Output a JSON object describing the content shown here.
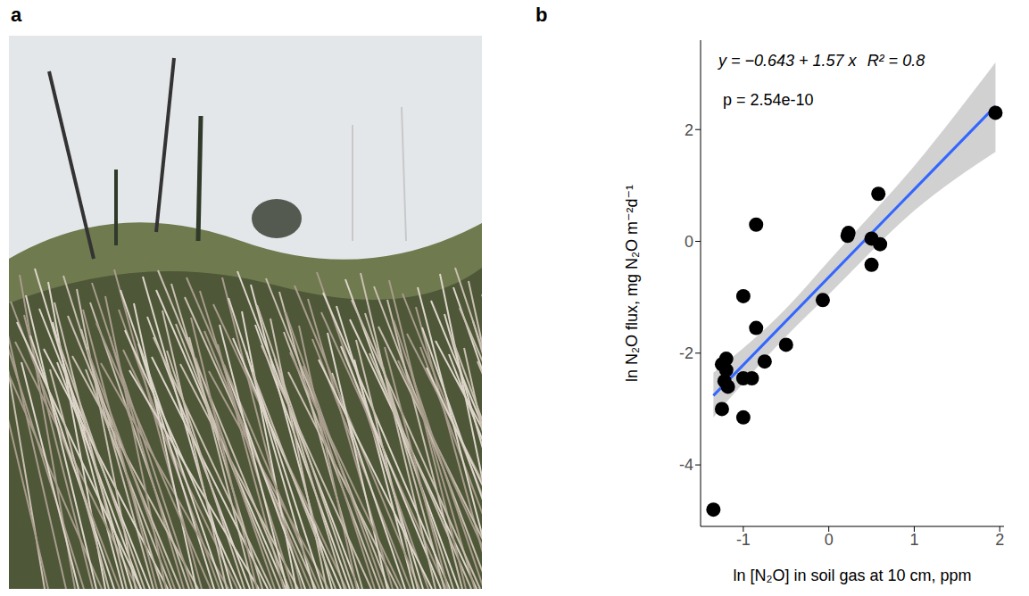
{
  "panel_a": {
    "label": "a"
  },
  "chart_data": {
    "type": "scatter",
    "panel_label": "b",
    "x_label": "ln [N₂O] in soil gas at 10 cm, ppm",
    "y_label": "ln N₂O flux, mg N₂O m⁻²d⁻¹",
    "annotations": [
      "y = −0.643 + 1.57 x",
      "R² = 0.8",
      "p = 2.54e-10"
    ],
    "xlim": [
      -1.5,
      2.05
    ],
    "ylim": [
      -5.1,
      3.6
    ],
    "xticks": [
      -1,
      0,
      1,
      2
    ],
    "yticks": [
      -4,
      -2,
      0,
      2
    ],
    "grid": false,
    "color": "#000000",
    "marker": "circle",
    "x": [
      -1.35,
      -1.25,
      -1.25,
      -1.22,
      -1.2,
      -1.18,
      -1.2,
      -1.0,
      -1.0,
      -1.0,
      -0.9,
      -0.85,
      -0.85,
      -0.75,
      -0.5,
      -0.07,
      0.23,
      0.22,
      0.5,
      0.5,
      0.58,
      0.6,
      1.95
    ],
    "values": [
      -4.8,
      -3.0,
      -2.2,
      -2.5,
      -2.1,
      -2.6,
      -2.3,
      -3.15,
      -2.45,
      -0.98,
      -2.45,
      -1.55,
      0.3,
      -2.15,
      -1.85,
      -1.05,
      0.15,
      0.1,
      0.05,
      -0.42,
      0.85,
      -0.05,
      2.3
    ],
    "fit": {
      "type": "line",
      "color": "#3366ff",
      "x": [
        -1.35,
        1.95
      ],
      "values": [
        -2.76,
        2.42
      ]
    },
    "band": {
      "type": "area",
      "color": "#bebebe",
      "x": [
        -1.35,
        -0.5,
        0,
        1,
        1.95
      ],
      "lower": [
        -3.15,
        -1.7,
        -0.95,
        0.55,
        1.6
      ],
      "upper": [
        -2.35,
        -1.2,
        -0.35,
        1.35,
        3.2
      ]
    }
  }
}
